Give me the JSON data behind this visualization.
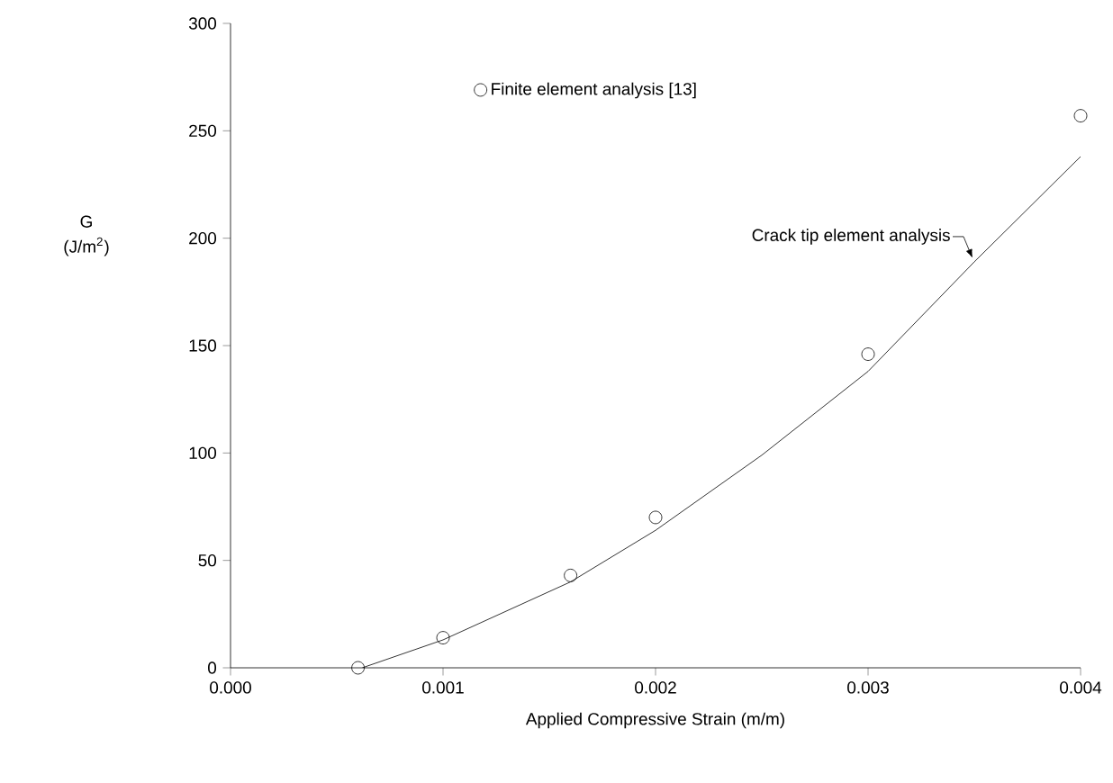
{
  "chart_data": {
    "type": "line",
    "xlabel": "Applied Compressive Strain (m/m)",
    "ylabel": "G (J/m$^{2}$)",
    "xlim": [
      0,
      0.004
    ],
    "ylim": [
      0,
      300
    ],
    "xticks": [
      {
        "value": 0,
        "label": "0.000"
      },
      {
        "value": 0.001,
        "label": "0.001"
      },
      {
        "value": 0.002,
        "label": "0.002"
      },
      {
        "value": 0.003,
        "label": "0.003"
      },
      {
        "value": 0.004,
        "label": "0.004"
      }
    ],
    "yticks": [
      0,
      50,
      100,
      150,
      200,
      250,
      300
    ],
    "legend": "top left",
    "grid": false,
    "series": [
      {
        "name": "Finite element analysis [13]",
        "type": "scatter",
        "marker": "circle",
        "color": "#000000",
        "x": [
          0.0006,
          0.001,
          0.0016,
          0.002,
          0.003,
          0.004
        ],
        "values": [
          0,
          14,
          43,
          70,
          146,
          257
        ]
      },
      {
        "name": "Crack tip element analysis",
        "marker": "none",
        "line_style": "solid",
        "color": "#000000",
        "x": [
          0.00062,
          0.001,
          0.0016,
          0.002,
          0.0025,
          0.003,
          0.0035,
          0.004
        ],
        "values": [
          0,
          13,
          40,
          64,
          99,
          138,
          189,
          238
        ]
      }
    ]
  }
}
